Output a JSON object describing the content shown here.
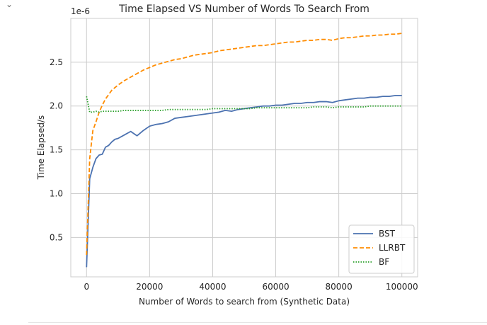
{
  "ui": {
    "collapse_icon": "chevron-down-icon",
    "collapse_glyph": "⌄"
  },
  "chart_data": {
    "type": "line",
    "title": "Time Elapsed VS Number of Words To Search From",
    "xlabel": "Number of Words to search from (Synthetic Data)",
    "ylabel": "Time Elapsed/s",
    "y_offset_label": "1e-6",
    "xlim": [
      -5000,
      105000
    ],
    "ylim": [
      0.05,
      3.0
    ],
    "xticks": [
      0,
      20000,
      40000,
      60000,
      80000,
      100000
    ],
    "xtick_labels": [
      "0",
      "20000",
      "40000",
      "60000",
      "80000",
      "100000"
    ],
    "yticks": [
      0.5,
      1.0,
      1.5,
      2.0,
      2.5
    ],
    "ytick_labels": [
      "0.5",
      "1.0",
      "1.5",
      "2.0",
      "2.5"
    ],
    "grid": true,
    "legend_position": "lower-right",
    "x": [
      0,
      1000,
      2000,
      3000,
      4000,
      5000,
      6000,
      7000,
      8000,
      9000,
      10000,
      12000,
      14000,
      16000,
      18000,
      20000,
      22000,
      24000,
      26000,
      28000,
      30000,
      32000,
      34000,
      36000,
      38000,
      40000,
      42000,
      44000,
      46000,
      48000,
      50000,
      52000,
      54000,
      56000,
      58000,
      60000,
      62000,
      64000,
      66000,
      68000,
      70000,
      72000,
      74000,
      76000,
      78000,
      80000,
      82000,
      84000,
      86000,
      88000,
      90000,
      92000,
      94000,
      96000,
      98000,
      100000
    ],
    "series": [
      {
        "name": "BST",
        "color": "#4c72b0",
        "dash": "solid",
        "values": [
          0.16,
          1.17,
          1.3,
          1.4,
          1.44,
          1.45,
          1.53,
          1.55,
          1.59,
          1.62,
          1.63,
          1.67,
          1.71,
          1.66,
          1.72,
          1.77,
          1.79,
          1.8,
          1.82,
          1.86,
          1.87,
          1.88,
          1.89,
          1.9,
          1.91,
          1.92,
          1.93,
          1.95,
          1.94,
          1.96,
          1.97,
          1.98,
          1.99,
          2.0,
          2.0,
          2.01,
          2.01,
          2.02,
          2.03,
          2.03,
          2.04,
          2.04,
          2.05,
          2.05,
          2.04,
          2.06,
          2.07,
          2.08,
          2.09,
          2.09,
          2.1,
          2.1,
          2.11,
          2.11,
          2.12,
          2.12
        ]
      },
      {
        "name": "LLRBT",
        "color": "#ff8c00",
        "dash": "dashed",
        "values": [
          0.3,
          1.4,
          1.72,
          1.82,
          1.93,
          2.01,
          2.08,
          2.13,
          2.18,
          2.21,
          2.24,
          2.29,
          2.33,
          2.37,
          2.41,
          2.44,
          2.47,
          2.49,
          2.51,
          2.53,
          2.54,
          2.56,
          2.58,
          2.59,
          2.6,
          2.61,
          2.63,
          2.64,
          2.65,
          2.66,
          2.67,
          2.68,
          2.69,
          2.69,
          2.7,
          2.71,
          2.72,
          2.73,
          2.73,
          2.74,
          2.75,
          2.75,
          2.76,
          2.76,
          2.75,
          2.77,
          2.78,
          2.78,
          2.79,
          2.8,
          2.8,
          2.81,
          2.81,
          2.82,
          2.82,
          2.83
        ]
      },
      {
        "name": "BF",
        "color": "#2ca02c",
        "dash": "dotted",
        "values": [
          2.11,
          1.93,
          1.93,
          1.94,
          1.93,
          1.94,
          1.94,
          1.94,
          1.94,
          1.94,
          1.94,
          1.95,
          1.95,
          1.95,
          1.95,
          1.95,
          1.95,
          1.95,
          1.96,
          1.96,
          1.96,
          1.96,
          1.96,
          1.96,
          1.96,
          1.97,
          1.97,
          1.97,
          1.97,
          1.97,
          1.97,
          1.97,
          1.98,
          1.98,
          1.98,
          1.98,
          1.98,
          1.98,
          1.98,
          1.98,
          1.98,
          1.99,
          1.99,
          1.99,
          1.98,
          1.99,
          1.99,
          1.99,
          1.99,
          1.99,
          2.0,
          2.0,
          2.0,
          2.0,
          2.0,
          2.0
        ]
      }
    ]
  }
}
